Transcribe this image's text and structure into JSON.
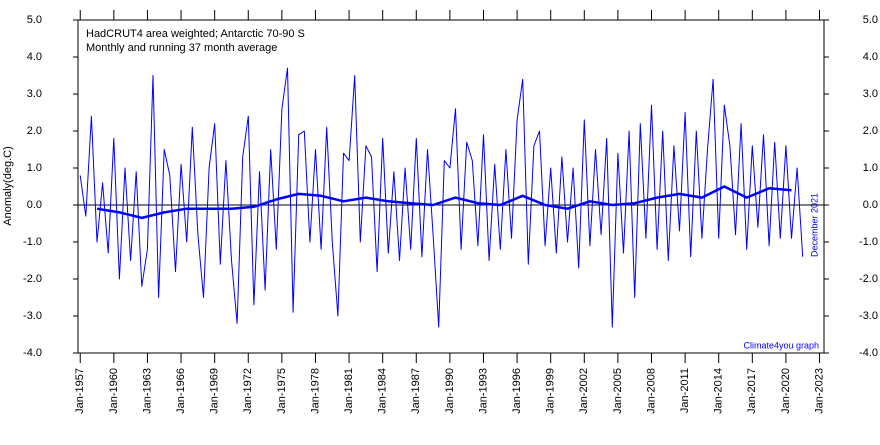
{
  "chart_data": {
    "type": "line",
    "title": "HadCRUT4 area weighted; Antarctic 70-90 S",
    "subtitle": "Monthly and running 37 month average",
    "y_label": "Anomaly(deg.C)",
    "date_note": "December 2021",
    "credit": "Climate4you graph",
    "xlim": [
      1956.8,
      2023.4
    ],
    "xticks": [
      {
        "value": 1957,
        "label": "Jan-1957"
      },
      {
        "value": 1960,
        "label": "Jan-1960"
      },
      {
        "value": 1963,
        "label": "Jan-1963"
      },
      {
        "value": 1966,
        "label": "Jan-1966"
      },
      {
        "value": 1969,
        "label": "Jan-1969"
      },
      {
        "value": 1972,
        "label": "Jan-1972"
      },
      {
        "value": 1975,
        "label": "Jan-1975"
      },
      {
        "value": 1978,
        "label": "Jan-1978"
      },
      {
        "value": 1981,
        "label": "Jan-1981"
      },
      {
        "value": 1984,
        "label": "Jan-1984"
      },
      {
        "value": 1987,
        "label": "Jan-1987"
      },
      {
        "value": 1990,
        "label": "Jan-1990"
      },
      {
        "value": 1993,
        "label": "Jan-1993"
      },
      {
        "value": 1996,
        "label": "Jan-1996"
      },
      {
        "value": 1999,
        "label": "Jan-1999"
      },
      {
        "value": 2002,
        "label": "Jan-2002"
      },
      {
        "value": 2005,
        "label": "Jan-2005"
      },
      {
        "value": 2008,
        "label": "Jan-2008"
      },
      {
        "value": 2011,
        "label": "Jan-2011"
      },
      {
        "value": 2014,
        "label": "Jan-2014"
      },
      {
        "value": 2017,
        "label": "Jan-2017"
      },
      {
        "value": 2020,
        "label": "Jan-2020"
      },
      {
        "value": 2023,
        "label": "Jan-2023"
      }
    ],
    "ylim": [
      -4,
      5
    ],
    "yticks": [
      {
        "value": 5,
        "label": "5.0"
      },
      {
        "value": 4,
        "label": "4.0"
      },
      {
        "value": 3,
        "label": "3.0"
      },
      {
        "value": 2,
        "label": "2.0"
      },
      {
        "value": 1,
        "label": "1.0"
      },
      {
        "value": 0,
        "label": "0.0"
      },
      {
        "value": -1,
        "label": "-1.0"
      },
      {
        "value": -2,
        "label": "-2.0"
      },
      {
        "value": -3,
        "label": "-3.0"
      },
      {
        "value": -4,
        "label": "-4.0"
      }
    ],
    "series": [
      {
        "color": "#0000ff",
        "width": 1,
        "x": [
          1957,
          1957.5,
          1958,
          1958.5,
          1959,
          1959.5,
          1960,
          1960.5,
          1961,
          1961.5,
          1962,
          1962.5,
          1963,
          1963.5,
          1964,
          1964.5,
          1965,
          1965.5,
          1966,
          1966.5,
          1967,
          1967.5,
          1968,
          1968.5,
          1969,
          1969.5,
          1970,
          1970.5,
          1971,
          1971.5,
          1972,
          1972.5,
          1973,
          1973.5,
          1974,
          1974.5,
          1975,
          1975.5,
          1976,
          1976.5,
          1977,
          1977.5,
          1978,
          1978.5,
          1979,
          1979.5,
          1980,
          1980.5,
          1981,
          1981.5,
          1982,
          1982.5,
          1983,
          1983.5,
          1984,
          1984.5,
          1985,
          1985.5,
          1986,
          1986.5,
          1987,
          1987.5,
          1988,
          1988.5,
          1989,
          1989.5,
          1990,
          1990.5,
          1991,
          1991.5,
          1992,
          1992.5,
          1993,
          1993.5,
          1994,
          1994.5,
          1995,
          1995.5,
          1996,
          1996.5,
          1997,
          1997.5,
          1998,
          1998.5,
          1999,
          1999.5,
          2000,
          2000.5,
          2001,
          2001.5,
          2002,
          2002.5,
          2003,
          2003.5,
          2004,
          2004.5,
          2005,
          2005.5,
          2006,
          2006.5,
          2007,
          2007.5,
          2008,
          2008.5,
          2009,
          2009.5,
          2010,
          2010.5,
          2011,
          2011.5,
          2012,
          2012.5,
          2013,
          2013.5,
          2014,
          2014.5,
          2015,
          2015.5,
          2016,
          2016.5,
          2017,
          2017.5,
          2018,
          2018.5,
          2019,
          2019.5,
          2020,
          2020.5,
          2021,
          2021.5
        ],
        "values": [
          0.8,
          -0.3,
          2.4,
          -1.0,
          0.6,
          -1.3,
          1.8,
          -2.0,
          1.0,
          -1.5,
          0.9,
          -2.2,
          -1.2,
          3.5,
          -2.5,
          1.5,
          0.8,
          -1.8,
          1.1,
          -1.0,
          2.1,
          -0.8,
          -2.5,
          1.0,
          2.2,
          -1.6,
          1.2,
          -1.5,
          -3.2,
          1.3,
          2.4,
          -2.7,
          0.9,
          -2.3,
          1.5,
          -1.2,
          2.6,
          3.7,
          -2.9,
          1.9,
          2.0,
          -1.0,
          1.5,
          -1.2,
          2.1,
          -1.0,
          -3.0,
          1.4,
          1.2,
          3.5,
          -1.0,
          1.6,
          1.3,
          -1.8,
          1.8,
          -1.3,
          0.9,
          -1.5,
          1.0,
          -1.2,
          1.8,
          -1.4,
          1.5,
          -0.8,
          -3.3,
          1.2,
          1.0,
          2.6,
          -1.2,
          1.7,
          1.2,
          -1.1,
          1.9,
          -1.5,
          1.1,
          -1.2,
          1.5,
          -0.9,
          2.3,
          3.4,
          -1.6,
          1.6,
          2.0,
          -1.1,
          1.0,
          -1.3,
          1.3,
          -1.0,
          1.0,
          -1.7,
          2.3,
          -1.1,
          1.5,
          -0.8,
          1.8,
          -3.3,
          1.4,
          -1.3,
          2.0,
          -2.5,
          2.2,
          -0.9,
          2.7,
          -1.2,
          2.0,
          -1.5,
          1.6,
          -0.7,
          2.5,
          -1.4,
          2.0,
          -0.9,
          1.5,
          3.4,
          -0.9,
          2.7,
          1.6,
          -0.8,
          2.2,
          -1.2,
          1.6,
          -0.6,
          1.9,
          -1.1,
          1.7,
          -0.9,
          1.6,
          -0.9,
          1.0,
          -1.4
        ]
      },
      {
        "color": "#0000ff",
        "width": 2.5,
        "x": [
          1958.5,
          1960.5,
          1962.5,
          1964.5,
          1966.5,
          1968.5,
          1970.5,
          1972.5,
          1974.5,
          1976.5,
          1978.5,
          1980.5,
          1982.5,
          1984.5,
          1986.5,
          1988.5,
          1990.5,
          1992.5,
          1994.5,
          1996.5,
          1998.5,
          2000.5,
          2002.5,
          2004.5,
          2006.5,
          2008.5,
          2010.5,
          2012.5,
          2014.5,
          2016.5,
          2018.5,
          2020.5
        ],
        "values": [
          -0.1,
          -0.2,
          -0.35,
          -0.2,
          -0.1,
          -0.1,
          -0.1,
          -0.05,
          0.15,
          0.3,
          0.25,
          0.1,
          0.2,
          0.1,
          0.05,
          0.0,
          0.2,
          0.05,
          0.0,
          0.25,
          0.0,
          -0.1,
          0.1,
          0.0,
          0.05,
          0.2,
          0.3,
          0.2,
          0.5,
          0.2,
          0.45,
          0.4
        ]
      }
    ]
  }
}
